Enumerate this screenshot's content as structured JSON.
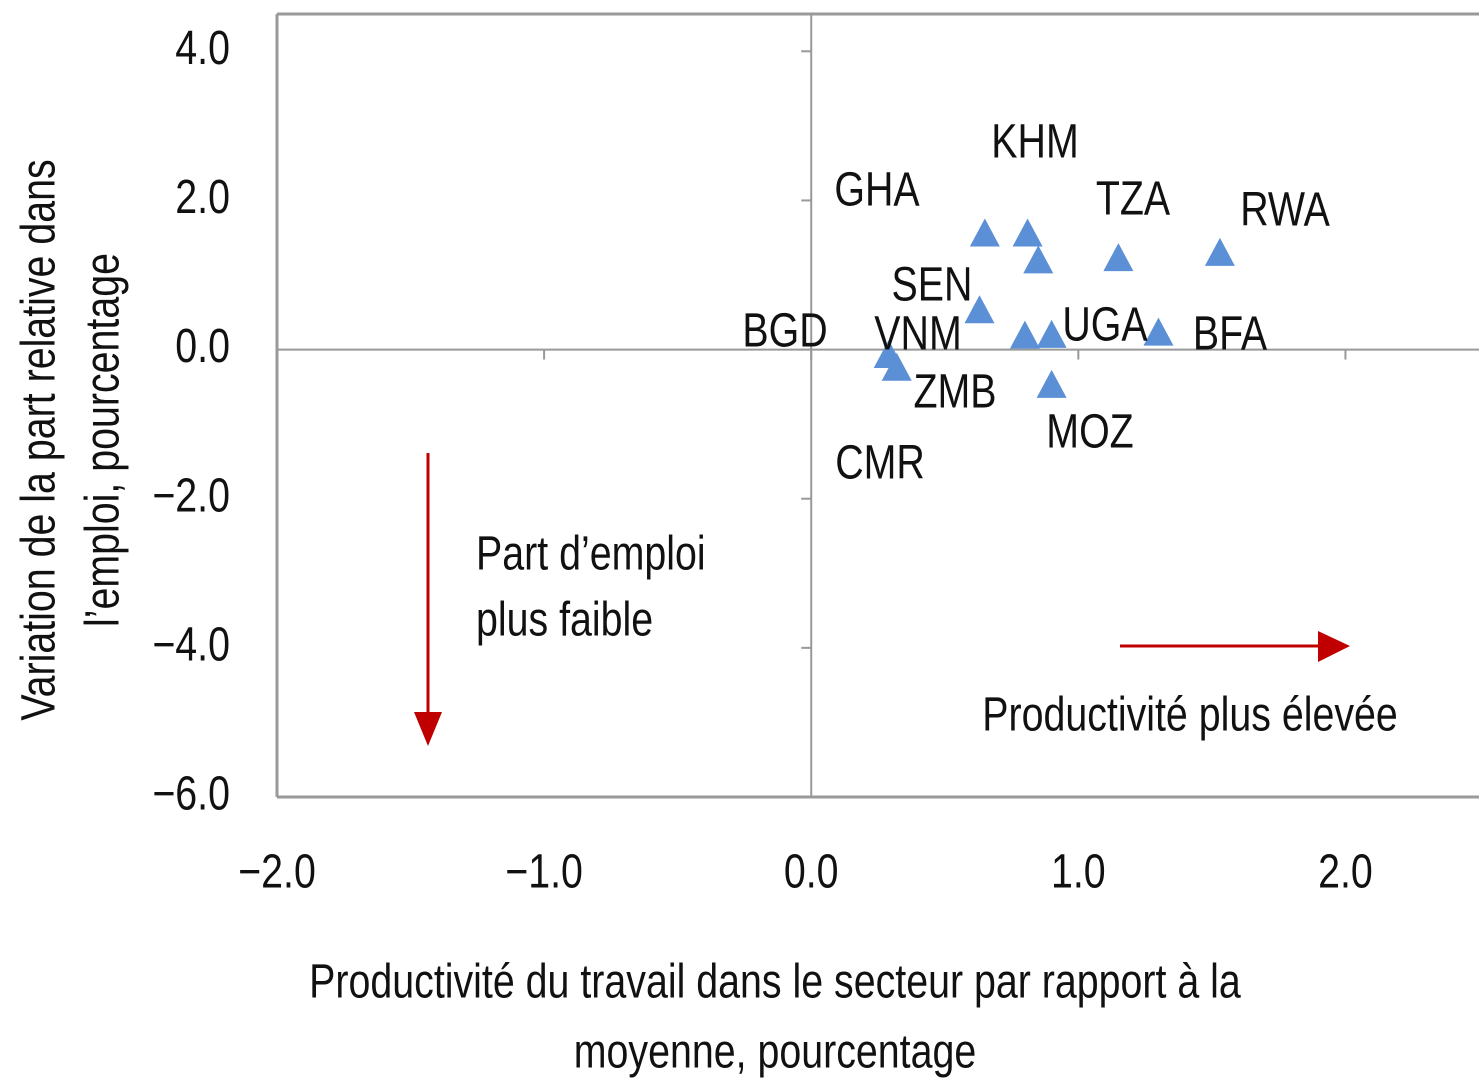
{
  "chart_data": {
    "type": "scatter",
    "x_label": [
      "Productivité du travail dans le secteur par rapport à la",
      "moyenne, pourcentage"
    ],
    "y_label": [
      "Variation de la part relative dans",
      "l’emploi, pourcentage"
    ],
    "xlim": [
      -2,
      2.5
    ],
    "ylim": [
      -6,
      4.5
    ],
    "xticks": [
      {
        "value": -2,
        "label": "−2.0"
      },
      {
        "value": -1,
        "label": "−1.0"
      },
      {
        "value": 0,
        "label": "0.0"
      },
      {
        "value": 1,
        "label": "1.0"
      },
      {
        "value": 2,
        "label": "2.0"
      }
    ],
    "yticks": [
      {
        "value": 4,
        "label": "4.0"
      },
      {
        "value": 2,
        "label": "2.0"
      },
      {
        "value": 0,
        "label": "0.0"
      },
      {
        "value": -2,
        "label": "−2.0"
      },
      {
        "value": -4,
        "label": "−4.0"
      },
      {
        "value": -6,
        "label": "−6.0"
      }
    ],
    "series": [
      {
        "color": "#5b8fd6",
        "x": [
          0.65,
          0.81,
          0.85,
          1.15,
          1.53,
          0.63,
          0.8,
          0.9,
          1.3,
          0.9,
          0.29,
          0.32
        ],
        "values": [
          1.53,
          1.53,
          1.17,
          1.2,
          1.27,
          0.5,
          0.16,
          0.17,
          0.2,
          -0.5,
          -0.1,
          -0.27
        ]
      }
    ],
    "annotations": [
      "GHA",
      "KHM",
      "TZA",
      "RWA",
      "SEN",
      "BGD",
      "VNM",
      "UGA",
      "BFA",
      "ZMB",
      "MOZ",
      "CMR"
    ],
    "notes": [
      [
        "Part d’emploi",
        "plus faible"
      ],
      "Productivité plus élevée"
    ],
    "arrow_color": "#c00000"
  }
}
